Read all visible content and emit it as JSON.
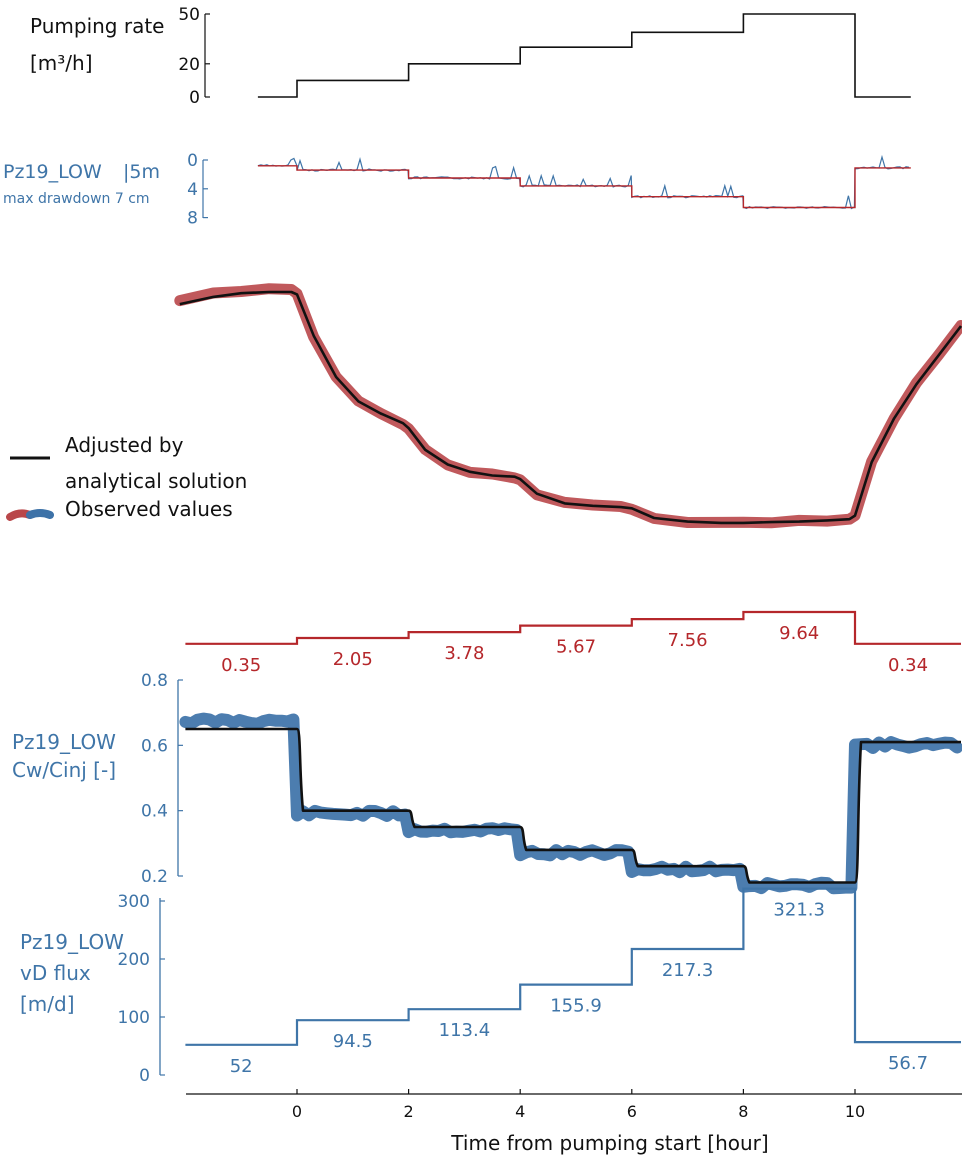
{
  "colors": {
    "black": "#111111",
    "blue": "#3f75a8",
    "observed_blue": "#3d72a8",
    "red": "#b5272b",
    "observed_red": "#b9474a"
  },
  "chart_data": [
    {
      "type": "line",
      "ylabel_line1": "Pumping rate",
      "ylabel_line2": "[m³/h]",
      "yticks": [
        "50",
        "20",
        "0"
      ],
      "ylim": [
        0,
        50
      ],
      "steps": [
        {
          "x0": -0.7,
          "x1": 0,
          "y": 0
        },
        {
          "x0": 0,
          "x1": 2,
          "y": 10
        },
        {
          "x0": 2,
          "x1": 4,
          "y": 20
        },
        {
          "x0": 4,
          "x1": 6,
          "y": 30
        },
        {
          "x0": 6,
          "x1": 8,
          "y": 39
        },
        {
          "x0": 8,
          "x1": 10,
          "y": 50
        },
        {
          "x0": 10,
          "x1": 11,
          "y": 0
        }
      ]
    },
    {
      "type": "line",
      "name_label": "Pz19_LOW",
      "scale_label": "|5m",
      "note": "max drawdown  7 cm",
      "yticks": [
        "0",
        "4",
        "8"
      ],
      "ylim": [
        0,
        8
      ],
      "drawdown_levels": [
        {
          "x0": -0.7,
          "x1": 0,
          "y": 0.8
        },
        {
          "x0": 0,
          "x1": 2,
          "y": 1.4
        },
        {
          "x0": 2,
          "x1": 4,
          "y": 2.5
        },
        {
          "x0": 4,
          "x1": 6,
          "y": 3.6
        },
        {
          "x0": 6,
          "x1": 8,
          "y": 5.1
        },
        {
          "x0": 8,
          "x1": 10,
          "y": 6.6
        },
        {
          "x0": 10,
          "x1": 11,
          "y": 1.1
        }
      ]
    },
    {
      "type": "line",
      "legend": [
        {
          "line1": "Adjusted by",
          "line2": "analytical solution"
        },
        {
          "line1": "Observed values"
        }
      ],
      "curve_relative": {
        "x": [
          -2.1,
          -1.5,
          -1,
          -0.5,
          -0.1,
          0,
          0.3,
          0.7,
          1.1,
          1.5,
          1.9,
          2,
          2.3,
          2.7,
          3.1,
          3.5,
          3.9,
          4,
          4.3,
          4.8,
          5.3,
          5.8,
          6,
          6.4,
          7,
          7.6,
          8,
          8.5,
          9,
          9.5,
          9.9,
          10,
          10.3,
          10.7,
          11.1,
          11.5,
          11.9
        ],
        "y": [
          0.95,
          0.98,
          0.995,
          1.0,
          1.0,
          0.99,
          0.82,
          0.65,
          0.55,
          0.5,
          0.46,
          0.44,
          0.35,
          0.29,
          0.26,
          0.245,
          0.24,
          0.23,
          0.17,
          0.13,
          0.12,
          0.115,
          0.11,
          0.07,
          0.055,
          0.05,
          0.05,
          0.053,
          0.055,
          0.06,
          0.065,
          0.08,
          0.3,
          0.48,
          0.62,
          0.74,
          0.86
        ]
      }
    },
    {
      "type": "line",
      "step_labels": [
        "0.35",
        "2.05",
        "3.78",
        "5.67",
        "7.56",
        "9.64",
        "0.34"
      ],
      "steps": [
        {
          "x0": -2.0,
          "x1": 0,
          "y": 0.35
        },
        {
          "x0": 0,
          "x1": 2,
          "y": 2.05
        },
        {
          "x0": 2,
          "x1": 4,
          "y": 3.78
        },
        {
          "x0": 4,
          "x1": 6,
          "y": 5.67
        },
        {
          "x0": 6,
          "x1": 8,
          "y": 7.56
        },
        {
          "x0": 8,
          "x1": 10,
          "y": 9.64
        },
        {
          "x0": 10,
          "x1": 11.9,
          "y": 0.34
        }
      ],
      "ylim": [
        0,
        10
      ]
    },
    {
      "type": "line",
      "ylabel_line1": "Pz19_LOW",
      "ylabel_line2": "Cw/Cinj [-]",
      "yticks": [
        "0.8",
        "0.6",
        "0.4",
        "0.2"
      ],
      "ylim": [
        0.2,
        0.8
      ],
      "levels": [
        {
          "x0": -2.0,
          "x1": 0,
          "y": 0.65
        },
        {
          "x0": 0,
          "x1": 2,
          "y": 0.4
        },
        {
          "x0": 2,
          "x1": 4,
          "y": 0.35
        },
        {
          "x0": 4,
          "x1": 6,
          "y": 0.28
        },
        {
          "x0": 6,
          "x1": 8,
          "y": 0.23
        },
        {
          "x0": 8,
          "x1": 10,
          "y": 0.18
        },
        {
          "x0": 10,
          "x1": 11.9,
          "y": 0.61
        }
      ]
    },
    {
      "type": "line",
      "ylabel_line1": "Pz19_LOW",
      "ylabel_line2": "vD flux",
      "ylabel_line3": "[m/d]",
      "yticks": [
        "300",
        "200",
        "100",
        "0"
      ],
      "ylim": [
        0,
        300
      ],
      "xticks": [
        "0",
        "2",
        "4",
        "6",
        "8",
        "10"
      ],
      "xlabel": "Time from pumping start [hour]",
      "step_labels": [
        "52",
        "94.5",
        "113.4",
        "155.9",
        "217.3",
        "321.3",
        "56.7"
      ],
      "steps": [
        {
          "x0": -2.0,
          "x1": 0,
          "y": 52
        },
        {
          "x0": 0,
          "x1": 2,
          "y": 94.5
        },
        {
          "x0": 2,
          "x1": 4,
          "y": 113.4
        },
        {
          "x0": 4,
          "x1": 6,
          "y": 155.9
        },
        {
          "x0": 6,
          "x1": 8,
          "y": 217.3
        },
        {
          "x0": 8,
          "x1": 10,
          "y": 321.3
        },
        {
          "x0": 10,
          "x1": 11.9,
          "y": 56.7
        }
      ]
    }
  ]
}
